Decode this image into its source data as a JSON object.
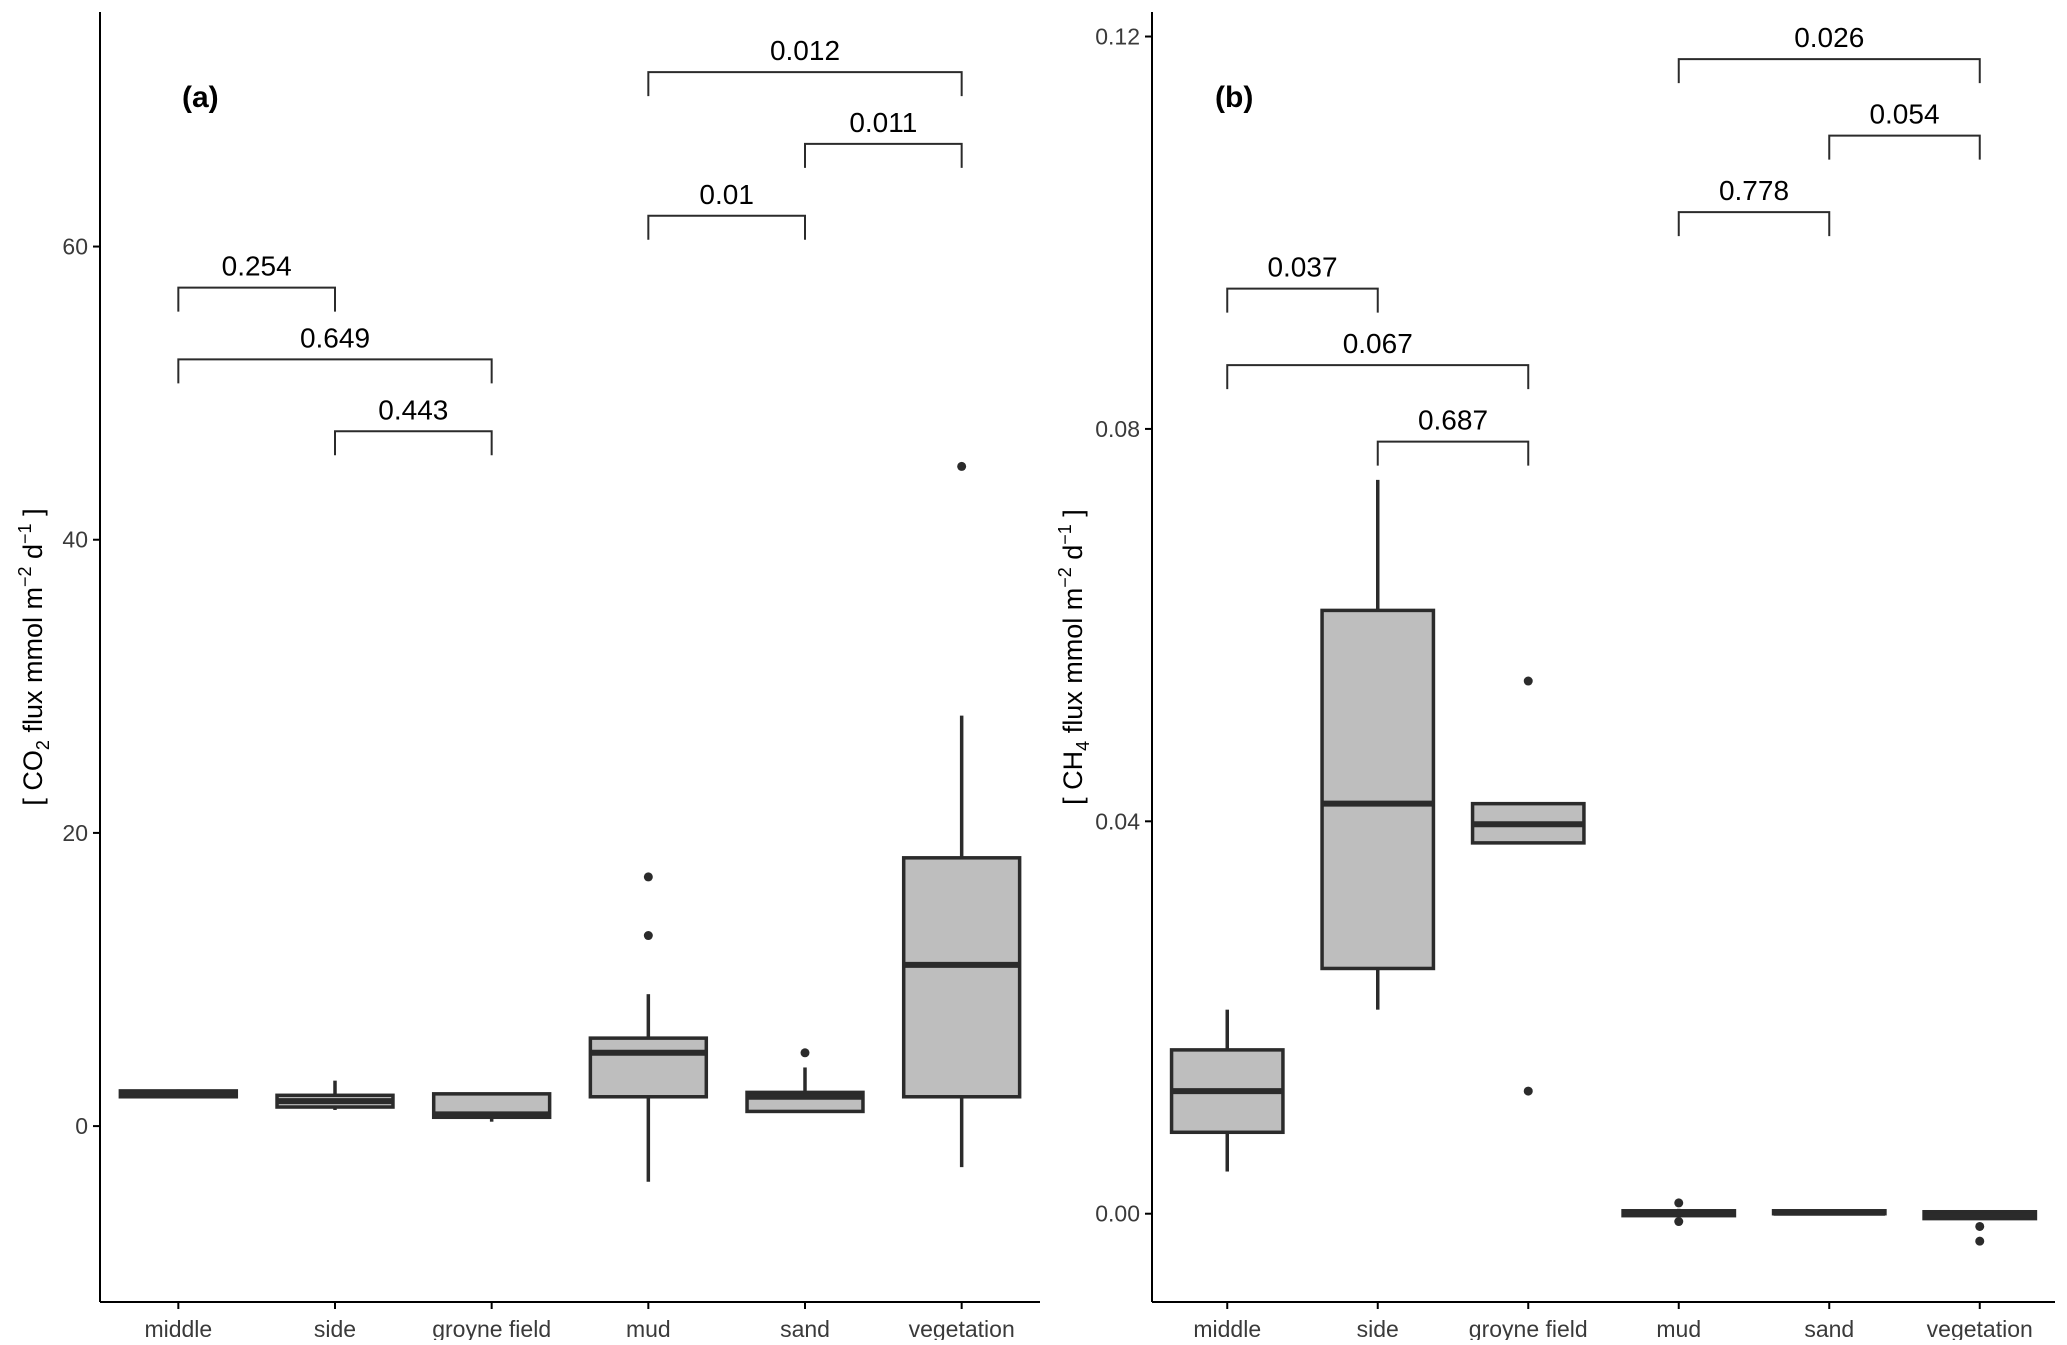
{
  "chart_data": [
    {
      "type": "boxplot",
      "panel_label": "(a)",
      "ylabel_parts": {
        "open": "[ CO",
        "sub": "2",
        "mid": " flux mmol m",
        "sup1": "−2",
        "mid2": " d",
        "sup2": "−1",
        "close": " ]"
      },
      "ylim": [
        -12,
        76
      ],
      "yticks": [
        0,
        20,
        40,
        60
      ],
      "ytick_labels": [
        "0",
        "20",
        "40",
        "60"
      ],
      "categories": [
        "middle",
        "side",
        "groyne field",
        "mud",
        "sand",
        "vegetation"
      ],
      "grid": false,
      "boxes": [
        {
          "category": "middle",
          "whisker_low": 2.0,
          "q1": 2.0,
          "median": 2.2,
          "q3": 2.4,
          "whisker_high": 2.5,
          "outliers": []
        },
        {
          "category": "side",
          "whisker_low": 1.1,
          "q1": 1.3,
          "median": 1.7,
          "q3": 2.1,
          "whisker_high": 3.1,
          "outliers": []
        },
        {
          "category": "groyne field",
          "whisker_low": 0.3,
          "q1": 0.6,
          "median": 0.8,
          "q3": 2.2,
          "whisker_high": 2.2,
          "outliers": []
        },
        {
          "category": "mud",
          "whisker_low": -3.8,
          "q1": 2.0,
          "median": 5.0,
          "q3": 6.0,
          "whisker_high": 9.0,
          "outliers": [
            13,
            17
          ]
        },
        {
          "category": "sand",
          "whisker_low": 1.0,
          "q1": 1.0,
          "median": 2.0,
          "q3": 2.3,
          "whisker_high": 4.0,
          "outliers": [
            5
          ]
        },
        {
          "category": "vegetation",
          "whisker_low": -2.8,
          "q1": 2.0,
          "median": 11.0,
          "q3": 18.3,
          "whisker_high": 28.0,
          "outliers": [
            45
          ]
        }
      ],
      "comparisons": [
        {
          "from": "middle",
          "to": "side",
          "label": "0.254",
          "y": 57.2
        },
        {
          "from": "middle",
          "to": "groyne field",
          "label": "0.649",
          "y": 52.3
        },
        {
          "from": "side",
          "to": "groyne field",
          "label": "0.443",
          "y": 47.4
        },
        {
          "from": "mud",
          "to": "sand",
          "label": "0.01",
          "y": 62.1
        },
        {
          "from": "sand",
          "to": "vegetation",
          "label": "0.011",
          "y": 67.0
        },
        {
          "from": "mud",
          "to": "vegetation",
          "label": "0.012",
          "y": 71.9
        }
      ]
    },
    {
      "type": "boxplot",
      "panel_label": "(b)",
      "ylabel_parts": {
        "open": "[ CH",
        "sub": "4",
        "mid": " flux mmol m",
        "sup1": "−2",
        "mid2": " d",
        "sup2": "−1",
        "close": " ]"
      },
      "ylim": [
        -0.009,
        0.1225
      ],
      "yticks": [
        0.0,
        0.04,
        0.08,
        0.12
      ],
      "ytick_labels": [
        "0.00",
        "0.04",
        "0.08",
        "0.12"
      ],
      "categories": [
        "middle",
        "side",
        "groyne field",
        "mud",
        "sand",
        "vegetation"
      ],
      "grid": false,
      "boxes": [
        {
          "category": "middle",
          "whisker_low": 0.0043,
          "q1": 0.0083,
          "median": 0.0125,
          "q3": 0.0167,
          "whisker_high": 0.0208,
          "outliers": []
        },
        {
          "category": "side",
          "whisker_low": 0.0208,
          "q1": 0.025,
          "median": 0.0418,
          "q3": 0.0615,
          "whisker_high": 0.0748,
          "outliers": []
        },
        {
          "category": "groyne field",
          "whisker_low": 0.0378,
          "q1": 0.0378,
          "median": 0.0397,
          "q3": 0.0418,
          "whisker_high": 0.0418,
          "outliers": [
            0.0125,
            0.0543
          ]
        },
        {
          "category": "mud",
          "whisker_low": -0.0002,
          "q1": -0.0002,
          "median": 0.0,
          "q3": 0.0003,
          "whisker_high": 0.0005,
          "outliers": [
            0.0011,
            -0.0008
          ]
        },
        {
          "category": "sand",
          "whisker_low": 0.0,
          "q1": 0.0,
          "median": 0.0001,
          "q3": 0.0003,
          "whisker_high": 0.0003,
          "outliers": []
        },
        {
          "category": "vegetation",
          "whisker_low": -0.0006,
          "q1": -0.0005,
          "median": -0.0002,
          "q3": 0.0002,
          "whisker_high": 0.0002,
          "outliers": [
            -0.0013,
            -0.0028
          ]
        }
      ],
      "comparisons": [
        {
          "from": "middle",
          "to": "side",
          "label": "0.037",
          "y": 0.0943
        },
        {
          "from": "middle",
          "to": "groyne field",
          "label": "0.067",
          "y": 0.0865
        },
        {
          "from": "side",
          "to": "groyne field",
          "label": "0.687",
          "y": 0.0787
        },
        {
          "from": "mud",
          "to": "sand",
          "label": "0.778",
          "y": 0.1021
        },
        {
          "from": "sand",
          "to": "vegetation",
          "label": "0.054",
          "y": 0.1099
        },
        {
          "from": "mud",
          "to": "vegetation",
          "label": "0.026",
          "y": 0.1177
        }
      ]
    }
  ],
  "colors": {
    "box_fill": "#bebebe",
    "stroke": "#2b2b2b",
    "axis": "#000000",
    "tick_label": "#3a3a3a",
    "text": "#000000"
  }
}
